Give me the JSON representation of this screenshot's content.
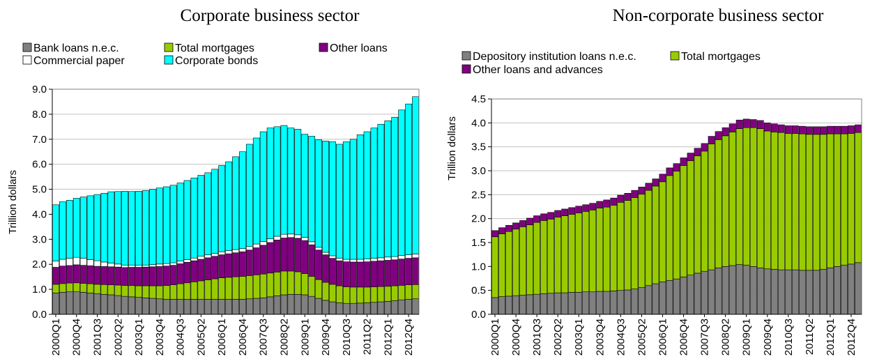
{
  "chart_data": [
    {
      "type": "bar",
      "stacked": true,
      "title": "Corporate business sector",
      "ylabel": "Trillion dollars",
      "xlabel": "",
      "ylim": [
        0,
        9
      ],
      "yticks": [
        "0.0",
        "1.0",
        "2.0",
        "3.0",
        "4.0",
        "5.0",
        "6.0",
        "7.0",
        "8.0",
        "9.0"
      ],
      "grid": true,
      "legend_placement": "top",
      "categories": [
        "2000Q1",
        "2000Q2",
        "2000Q3",
        "2000Q4",
        "2001Q1",
        "2001Q2",
        "2001Q3",
        "2001Q4",
        "2002Q1",
        "2002Q2",
        "2002Q3",
        "2002Q4",
        "2003Q1",
        "2003Q2",
        "2003Q3",
        "2003Q4",
        "2004Q1",
        "2004Q2",
        "2004Q3",
        "2004Q4",
        "2005Q1",
        "2005Q2",
        "2005Q3",
        "2005Q4",
        "2006Q1",
        "2006Q2",
        "2006Q3",
        "2006Q4",
        "2007Q1",
        "2007Q2",
        "2007Q3",
        "2007Q4",
        "2008Q1",
        "2008Q2",
        "2008Q3",
        "2008Q4",
        "2009Q1",
        "2009Q2",
        "2009Q3",
        "2009Q4",
        "2010Q1",
        "2010Q2",
        "2010Q3",
        "2010Q4",
        "2011Q1",
        "2011Q2",
        "2011Q3",
        "2011Q4",
        "2012Q1",
        "2012Q2",
        "2012Q3",
        "2012Q4",
        "2013Q1"
      ],
      "tick_labels": [
        "2000Q1",
        "2000Q4",
        "2001Q3",
        "2002Q2",
        "2003Q1",
        "2003Q4",
        "2004Q3",
        "2005Q2",
        "2006Q1",
        "2006Q4",
        "2007Q3",
        "2008Q2",
        "2009Q1",
        "2009Q4",
        "2010Q3",
        "2011Q2",
        "2012Q1",
        "2012Q4"
      ],
      "series": [
        {
          "name": "Bank loans n.e.c.",
          "color": "#808080",
          "values": [
            0.85,
            0.88,
            0.9,
            0.9,
            0.88,
            0.85,
            0.82,
            0.8,
            0.78,
            0.75,
            0.72,
            0.7,
            0.68,
            0.66,
            0.64,
            0.62,
            0.6,
            0.6,
            0.6,
            0.6,
            0.6,
            0.6,
            0.6,
            0.6,
            0.6,
            0.6,
            0.6,
            0.6,
            0.62,
            0.64,
            0.66,
            0.7,
            0.74,
            0.78,
            0.8,
            0.8,
            0.78,
            0.72,
            0.64,
            0.56,
            0.5,
            0.46,
            0.44,
            0.44,
            0.45,
            0.46,
            0.48,
            0.5,
            0.52,
            0.55,
            0.58,
            0.6,
            0.62
          ]
        },
        {
          "name": "Total mortgages",
          "color": "#99CC00",
          "values": [
            0.35,
            0.35,
            0.35,
            0.36,
            0.36,
            0.37,
            0.38,
            0.39,
            0.4,
            0.42,
            0.43,
            0.45,
            0.46,
            0.48,
            0.5,
            0.52,
            0.55,
            0.58,
            0.62,
            0.66,
            0.7,
            0.74,
            0.78,
            0.82,
            0.86,
            0.88,
            0.9,
            0.92,
            0.93,
            0.94,
            0.95,
            0.95,
            0.95,
            0.95,
            0.93,
            0.9,
            0.85,
            0.8,
            0.75,
            0.72,
            0.7,
            0.68,
            0.66,
            0.65,
            0.64,
            0.63,
            0.62,
            0.61,
            0.6,
            0.59,
            0.58,
            0.58,
            0.57
          ]
        },
        {
          "name": "Other loans",
          "color": "#800080",
          "values": [
            0.68,
            0.7,
            0.7,
            0.72,
            0.72,
            0.72,
            0.72,
            0.72,
            0.72,
            0.72,
            0.72,
            0.73,
            0.74,
            0.75,
            0.76,
            0.77,
            0.78,
            0.78,
            0.8,
            0.82,
            0.84,
            0.86,
            0.88,
            0.9,
            0.92,
            0.94,
            0.96,
            0.98,
            1.02,
            1.08,
            1.15,
            1.22,
            1.28,
            1.32,
            1.34,
            1.34,
            1.32,
            1.26,
            1.18,
            1.1,
            1.04,
            1.0,
            1.0,
            1.0,
            1.0,
            1.01,
            1.02,
            1.03,
            1.04,
            1.04,
            1.05,
            1.06,
            1.07
          ]
        },
        {
          "name": "Commercial paper",
          "color": "#FFFFFF",
          "values": [
            0.25,
            0.27,
            0.29,
            0.3,
            0.28,
            0.25,
            0.22,
            0.18,
            0.15,
            0.12,
            0.1,
            0.09,
            0.08,
            0.08,
            0.09,
            0.1,
            0.1,
            0.1,
            0.11,
            0.11,
            0.11,
            0.12,
            0.12,
            0.12,
            0.12,
            0.13,
            0.13,
            0.13,
            0.14,
            0.15,
            0.15,
            0.15,
            0.15,
            0.15,
            0.14,
            0.14,
            0.13,
            0.12,
            0.11,
            0.1,
            0.1,
            0.1,
            0.1,
            0.11,
            0.11,
            0.12,
            0.12,
            0.12,
            0.13,
            0.13,
            0.14,
            0.14,
            0.15
          ]
        },
        {
          "name": "Corporate bonds",
          "color": "#00FFFF",
          "values": [
            2.25,
            2.3,
            2.32,
            2.36,
            2.45,
            2.55,
            2.65,
            2.75,
            2.85,
            2.9,
            2.95,
            2.94,
            2.96,
            2.98,
            3.01,
            3.04,
            3.07,
            3.1,
            3.12,
            3.16,
            3.2,
            3.24,
            3.28,
            3.36,
            3.45,
            3.55,
            3.71,
            3.87,
            4.09,
            4.24,
            4.39,
            4.43,
            4.38,
            4.35,
            4.24,
            4.22,
            4.12,
            4.22,
            4.3,
            4.45,
            4.56,
            4.56,
            4.7,
            4.8,
            4.98,
            5.08,
            5.21,
            5.34,
            5.45,
            5.57,
            5.82,
            6.03,
            6.29
          ]
        }
      ]
    },
    {
      "type": "bar",
      "stacked": true,
      "title": "Non-corporate business sector",
      "ylabel": "Trillion dollars",
      "xlabel": "",
      "ylim": [
        0,
        4.5
      ],
      "yticks": [
        "0.0",
        "0.5",
        "1.0",
        "1.5",
        "2.0",
        "2.5",
        "3.0",
        "3.5",
        "4.0",
        "4.5"
      ],
      "grid": true,
      "legend_placement": "top",
      "categories": [
        "2000Q1",
        "2000Q2",
        "2000Q3",
        "2000Q4",
        "2001Q1",
        "2001Q2",
        "2001Q3",
        "2001Q4",
        "2002Q1",
        "2002Q2",
        "2002Q3",
        "2002Q4",
        "2003Q1",
        "2003Q2",
        "2003Q3",
        "2003Q4",
        "2004Q1",
        "2004Q2",
        "2004Q3",
        "2004Q4",
        "2005Q1",
        "2005Q2",
        "2005Q3",
        "2005Q4",
        "2006Q1",
        "2006Q2",
        "2006Q3",
        "2006Q4",
        "2007Q1",
        "2007Q2",
        "2007Q3",
        "2007Q4",
        "2008Q1",
        "2008Q2",
        "2008Q3",
        "2008Q4",
        "2009Q1",
        "2009Q2",
        "2009Q3",
        "2009Q4",
        "2010Q1",
        "2010Q2",
        "2010Q3",
        "2010Q4",
        "2011Q1",
        "2011Q2",
        "2011Q3",
        "2011Q4",
        "2012Q1",
        "2012Q2",
        "2012Q3",
        "2012Q4",
        "2013Q1"
      ],
      "tick_labels": [
        "2000Q1",
        "2000Q4",
        "2001Q3",
        "2002Q2",
        "2003Q1",
        "2003Q4",
        "2004Q3",
        "2005Q2",
        "2006Q1",
        "2006Q4",
        "2007Q3",
        "2008Q2",
        "2009Q1",
        "2009Q4",
        "2010Q3",
        "2011Q2",
        "2012Q1",
        "2012Q4"
      ],
      "series": [
        {
          "name": "Depository institution loans n.e.c.",
          "color": "#808080",
          "values": [
            0.35,
            0.37,
            0.38,
            0.39,
            0.4,
            0.41,
            0.42,
            0.43,
            0.44,
            0.45,
            0.45,
            0.46,
            0.46,
            0.47,
            0.47,
            0.48,
            0.48,
            0.49,
            0.5,
            0.51,
            0.53,
            0.56,
            0.6,
            0.64,
            0.68,
            0.71,
            0.74,
            0.78,
            0.82,
            0.86,
            0.9,
            0.93,
            0.97,
            1.0,
            1.02,
            1.04,
            1.03,
            1.0,
            0.97,
            0.95,
            0.94,
            0.93,
            0.93,
            0.93,
            0.92,
            0.92,
            0.92,
            0.94,
            0.97,
            1.0,
            1.03,
            1.05,
            1.08
          ]
        },
        {
          "name": "Total mortgages",
          "color": "#99CC00",
          "values": [
            1.27,
            1.31,
            1.35,
            1.39,
            1.43,
            1.46,
            1.5,
            1.53,
            1.55,
            1.58,
            1.61,
            1.63,
            1.66,
            1.68,
            1.71,
            1.74,
            1.76,
            1.79,
            1.84,
            1.87,
            1.91,
            1.95,
            1.99,
            2.04,
            2.09,
            2.19,
            2.25,
            2.33,
            2.39,
            2.45,
            2.51,
            2.63,
            2.68,
            2.73,
            2.79,
            2.84,
            2.87,
            2.9,
            2.91,
            2.88,
            2.87,
            2.87,
            2.85,
            2.85,
            2.85,
            2.84,
            2.84,
            2.82,
            2.8,
            2.77,
            2.74,
            2.73,
            2.72
          ]
        },
        {
          "name": "Other loans and advances",
          "color": "#800080",
          "values": [
            0.13,
            0.13,
            0.13,
            0.13,
            0.13,
            0.14,
            0.14,
            0.14,
            0.14,
            0.14,
            0.14,
            0.14,
            0.14,
            0.14,
            0.14,
            0.14,
            0.15,
            0.15,
            0.15,
            0.15,
            0.15,
            0.15,
            0.15,
            0.15,
            0.16,
            0.16,
            0.16,
            0.16,
            0.16,
            0.16,
            0.16,
            0.16,
            0.17,
            0.17,
            0.17,
            0.18,
            0.18,
            0.17,
            0.17,
            0.17,
            0.17,
            0.16,
            0.16,
            0.16,
            0.16,
            0.16,
            0.16,
            0.16,
            0.16,
            0.16,
            0.16,
            0.16,
            0.16
          ]
        }
      ]
    }
  ]
}
